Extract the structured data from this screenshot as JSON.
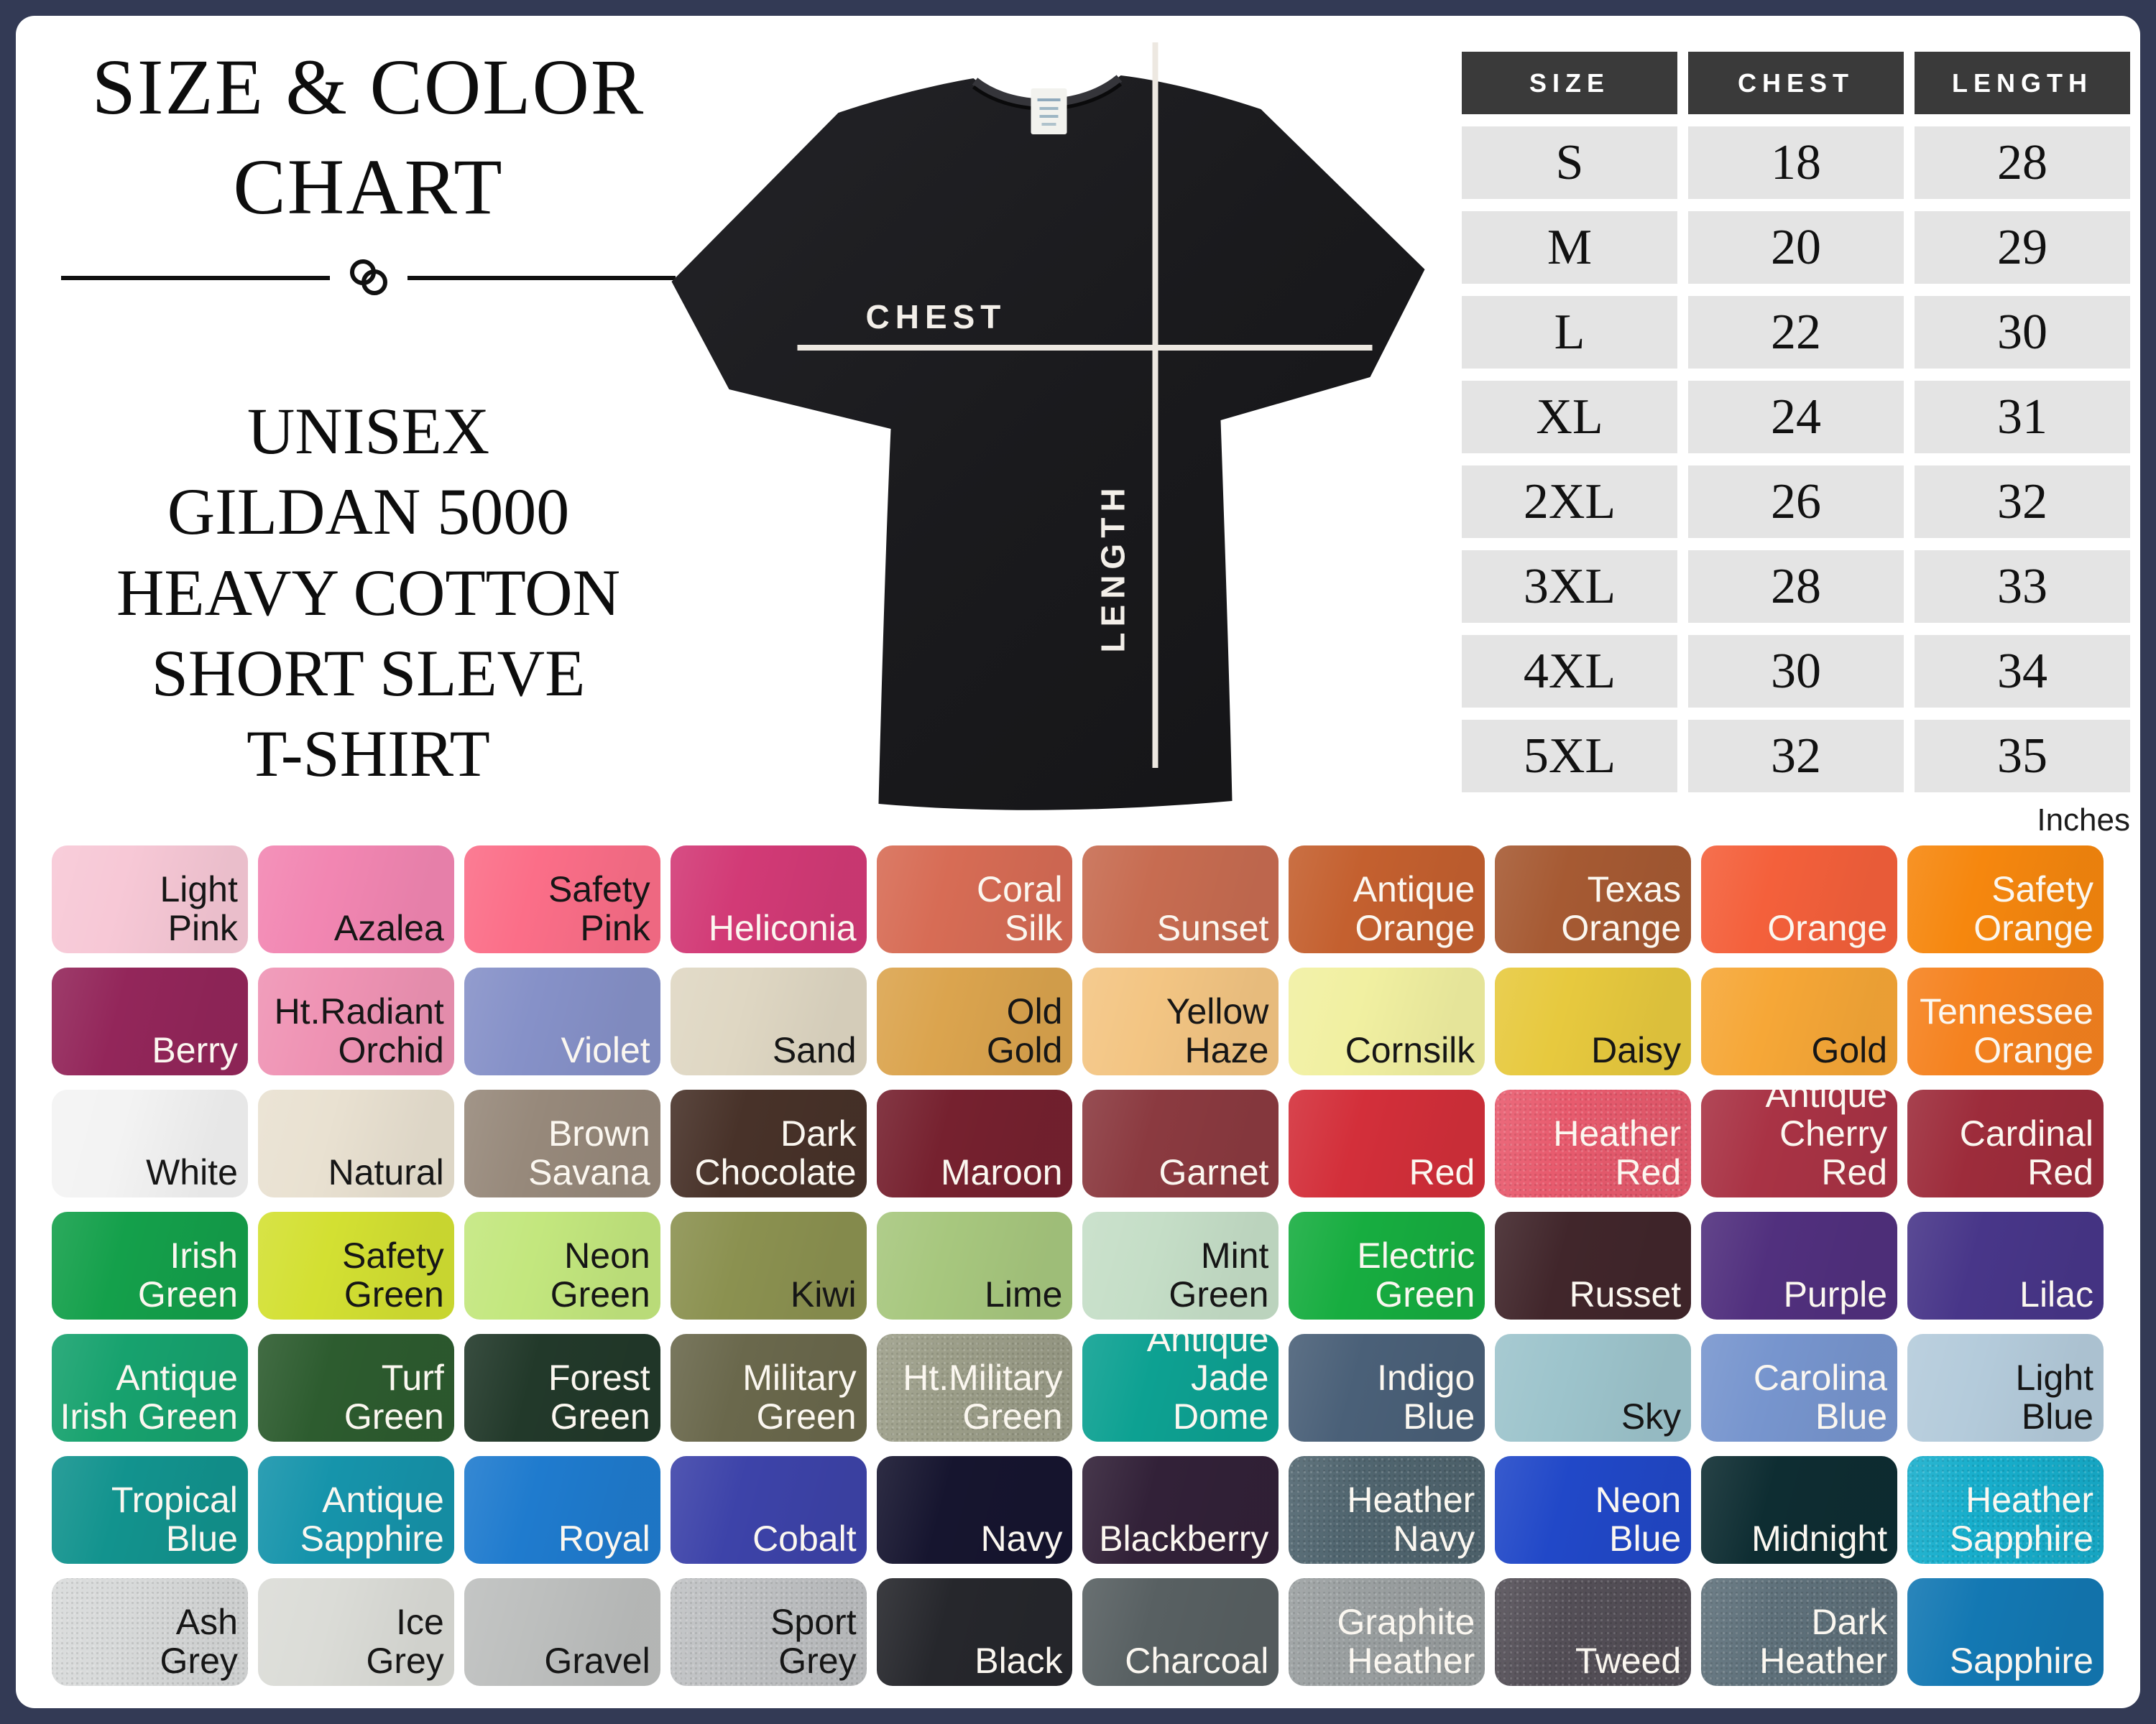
{
  "page": {
    "background": "#FFFFFF",
    "frame_color": "#333A55"
  },
  "title": {
    "lines": [
      "SIZE & COLOR",
      "CHART"
    ],
    "subtitle_lines": [
      "UNISEX",
      "GILDAN 5000",
      "HEAVY COTTON",
      "SHORT SLEVE",
      "T-SHIRT"
    ]
  },
  "shirt": {
    "chest_label": "CHEST",
    "length_label": "LENGTH",
    "shirt_color": "#1B1B1E",
    "line_color": "#EDE8E1"
  },
  "size_table": {
    "headers": [
      "SIZE",
      "CHEST",
      "LENGTH"
    ],
    "rows": [
      [
        "S",
        "18",
        "28"
      ],
      [
        "M",
        "20",
        "29"
      ],
      [
        "L",
        "22",
        "30"
      ],
      [
        "XL",
        "24",
        "31"
      ],
      [
        "2XL",
        "26",
        "32"
      ],
      [
        "3XL",
        "28",
        "33"
      ],
      [
        "4XL",
        "30",
        "34"
      ],
      [
        "5XL",
        "32",
        "35"
      ]
    ],
    "unit_note": "Inches",
    "header_bg": "#3A3A3A",
    "cell_bg": "#E4E4E4"
  },
  "swatch_rows": [
    [
      {
        "name": "Light Pink",
        "lines": [
          "Light",
          "Pink"
        ],
        "color": "#F7C8D6",
        "text": "dark"
      },
      {
        "name": "Azalea",
        "lines": [
          "Azalea"
        ],
        "color": "#F286B2",
        "text": "dark"
      },
      {
        "name": "Safety Pink",
        "lines": [
          "Safety",
          "Pink"
        ],
        "color": "#FB6E88",
        "text": "dark"
      },
      {
        "name": "Heliconia",
        "lines": [
          "Heliconia"
        ],
        "color": "#D23A76",
        "text": "light"
      },
      {
        "name": "Coral Silk",
        "lines": [
          "Coral",
          "Silk"
        ],
        "color": "#D76C55",
        "text": "light"
      },
      {
        "name": "Sunset",
        "lines": [
          "Sunset"
        ],
        "color": "#C76C51",
        "text": "light"
      },
      {
        "name": "Antique Orange",
        "lines": [
          "Antique",
          "Orange"
        ],
        "color": "#C4602F",
        "text": "light"
      },
      {
        "name": "Texas Orange",
        "lines": [
          "Texas",
          "Orange"
        ],
        "color": "#A65A33",
        "text": "light"
      },
      {
        "name": "Orange",
        "lines": [
          "Orange"
        ],
        "color": "#F4603B",
        "text": "light"
      },
      {
        "name": "Safety Orange",
        "lines": [
          "Safety",
          "Orange"
        ],
        "color": "#F6870E",
        "text": "light"
      }
    ],
    [
      {
        "name": "Berry",
        "lines": [
          "Berry"
        ],
        "color": "#93265A",
        "text": "light"
      },
      {
        "name": "Ht.Radiant Orchid",
        "lines": [
          "Ht.Radiant",
          "Orchid"
        ],
        "color": "#EF93B4",
        "text": "dark"
      },
      {
        "name": "Violet",
        "lines": [
          "Violet"
        ],
        "color": "#8691C8",
        "text": "light"
      },
      {
        "name": "Sand",
        "lines": [
          "Sand"
        ],
        "color": "#DFD7C3",
        "text": "dark"
      },
      {
        "name": "Old Gold",
        "lines": [
          "Old",
          "Gold"
        ],
        "color": "#DBA44E",
        "text": "dark"
      },
      {
        "name": "Yellow Haze",
        "lines": [
          "Yellow",
          "Haze"
        ],
        "color": "#F3C583",
        "text": "dark"
      },
      {
        "name": "Cornsilk",
        "lines": [
          "Cornsilk"
        ],
        "color": "#F1F0A1",
        "text": "dark"
      },
      {
        "name": "Daisy",
        "lines": [
          "Daisy"
        ],
        "color": "#E7C93E",
        "text": "dark"
      },
      {
        "name": "Gold",
        "lines": [
          "Gold"
        ],
        "color": "#F6A737",
        "text": "dark"
      },
      {
        "name": "Tennessee Orange",
        "lines": [
          "Tennessee",
          "Orange"
        ],
        "color": "#F5821F",
        "text": "light"
      }
    ],
    [
      {
        "name": "White",
        "lines": [
          "White"
        ],
        "color": "#F3F3F3",
        "text": "dark"
      },
      {
        "name": "Natural",
        "lines": [
          "Natural"
        ],
        "color": "#E9E1D1",
        "text": "dark"
      },
      {
        "name": "Brown Savana",
        "lines": [
          "Brown",
          "Savana"
        ],
        "color": "#97897B",
        "text": "light"
      },
      {
        "name": "Dark Chocolate",
        "lines": [
          "Dark",
          "Chocolate"
        ],
        "color": "#483229",
        "text": "light"
      },
      {
        "name": "Maroon",
        "lines": [
          "Maroon"
        ],
        "color": "#76212F",
        "text": "light"
      },
      {
        "name": "Garnet",
        "lines": [
          "Garnet"
        ],
        "color": "#8B3A40",
        "text": "light"
      },
      {
        "name": "Red",
        "lines": [
          "Red"
        ],
        "color": "#D32F3A",
        "text": "light"
      },
      {
        "name": "Heather Red",
        "lines": [
          "Heather",
          "Red"
        ],
        "color": "#E85B6E",
        "text": "light",
        "heather": true
      },
      {
        "name": "Antique Cherry Red",
        "lines": [
          "Antique",
          "Cherry Red"
        ],
        "color": "#A93345",
        "text": "light"
      },
      {
        "name": "Cardinal Red",
        "lines": [
          "Cardinal",
          "Red"
        ],
        "color": "#9D2C3B",
        "text": "light"
      }
    ],
    [
      {
        "name": "Irish Green",
        "lines": [
          "Irish",
          "Green"
        ],
        "color": "#14A04B",
        "text": "light"
      },
      {
        "name": "Safety Green",
        "lines": [
          "Safety",
          "Green"
        ],
        "color": "#D3E032",
        "text": "dark"
      },
      {
        "name": "Neon Green",
        "lines": [
          "Neon",
          "Green"
        ],
        "color": "#C3E77E",
        "text": "dark"
      },
      {
        "name": "Kiwi",
        "lines": [
          "Kiwi"
        ],
        "color": "#8B9150",
        "text": "dark"
      },
      {
        "name": "Lime",
        "lines": [
          "Lime"
        ],
        "color": "#A7C77E",
        "text": "dark"
      },
      {
        "name": "Mint Green",
        "lines": [
          "Mint",
          "Green"
        ],
        "color": "#C5DEC7",
        "text": "dark"
      },
      {
        "name": "Electric Green",
        "lines": [
          "Electric",
          "Green"
        ],
        "color": "#17AD40",
        "text": "light"
      },
      {
        "name": "Russet",
        "lines": [
          "Russet"
        ],
        "color": "#41262B",
        "text": "light"
      },
      {
        "name": "Purple",
        "lines": [
          "Purple"
        ],
        "color": "#51307E",
        "text": "light"
      },
      {
        "name": "Lilac",
        "lines": [
          "Lilac"
        ],
        "color": "#483689",
        "text": "light"
      }
    ],
    [
      {
        "name": "Antique Irish Green",
        "lines": [
          "Antique",
          "Irish Green"
        ],
        "color": "#17A26E",
        "text": "light"
      },
      {
        "name": "Turf Green",
        "lines": [
          "Turf",
          "Green"
        ],
        "color": "#2D5C2F",
        "text": "light"
      },
      {
        "name": "Forest Green",
        "lines": [
          "Forest",
          "Green"
        ],
        "color": "#22392A",
        "text": "light"
      },
      {
        "name": "Military Green",
        "lines": [
          "Military",
          "Green"
        ],
        "color": "#6A684C",
        "text": "light"
      },
      {
        "name": "Ht.Military Green",
        "lines": [
          "Ht.Military",
          "Green"
        ],
        "color": "#9C9E89",
        "text": "light",
        "heather": true
      },
      {
        "name": "Antique Jade Dome",
        "lines": [
          "Antique",
          "Jade Dome"
        ],
        "color": "#0DA192",
        "text": "light"
      },
      {
        "name": "Indigo Blue",
        "lines": [
          "Indigo",
          "Blue"
        ],
        "color": "#4A6078",
        "text": "light"
      },
      {
        "name": "Sky",
        "lines": [
          "Sky"
        ],
        "color": "#9DC4CC",
        "text": "dark"
      },
      {
        "name": "Carolina Blue",
        "lines": [
          "Carolina",
          "Blue"
        ],
        "color": "#7795CE",
        "text": "light"
      },
      {
        "name": "Light Blue",
        "lines": [
          "Light",
          "Blue"
        ],
        "color": "#B4CBDB",
        "text": "dark"
      }
    ],
    [
      {
        "name": "Tropical Blue",
        "lines": [
          "Tropical",
          "Blue"
        ],
        "color": "#12938E",
        "text": "light"
      },
      {
        "name": "Antique Sapphire",
        "lines": [
          "Antique",
          "Sapphire"
        ],
        "color": "#1694AB",
        "text": "light"
      },
      {
        "name": "Royal",
        "lines": [
          "Royal"
        ],
        "color": "#1F7BCE",
        "text": "light"
      },
      {
        "name": "Cobalt",
        "lines": [
          "Cobalt"
        ],
        "color": "#3D43A9",
        "text": "light"
      },
      {
        "name": "Navy",
        "lines": [
          "Navy"
        ],
        "color": "#16152F",
        "text": "light"
      },
      {
        "name": "Blackberry",
        "lines": [
          "Blackberry"
        ],
        "color": "#322138",
        "text": "light"
      },
      {
        "name": "Heather Navy",
        "lines": [
          "Heather",
          "Navy"
        ],
        "color": "#50656F",
        "text": "light",
        "heather": true
      },
      {
        "name": "Neon Blue",
        "lines": [
          "Neon",
          "Blue"
        ],
        "color": "#2148C8",
        "text": "light"
      },
      {
        "name": "Midnight",
        "lines": [
          "Midnight"
        ],
        "color": "#0E2D32",
        "text": "light"
      },
      {
        "name": "Heather Sapphire",
        "lines": [
          "Heather",
          "Sapphire"
        ],
        "color": "#17AECC",
        "text": "light",
        "heather": true
      }
    ],
    [
      {
        "name": "Ash Grey",
        "lines": [
          "Ash",
          "Grey"
        ],
        "color": "#D8DADA",
        "text": "dark",
        "heather": true
      },
      {
        "name": "Ice Grey",
        "lines": [
          "Ice",
          "Grey"
        ],
        "color": "#DBDCD7",
        "text": "dark"
      },
      {
        "name": "Gravel",
        "lines": [
          "Gravel"
        ],
        "color": "#BDBFBE",
        "text": "dark"
      },
      {
        "name": "Sport Grey",
        "lines": [
          "Sport",
          "Grey"
        ],
        "color": "#BFC1C3",
        "text": "dark",
        "heather": true
      },
      {
        "name": "Black",
        "lines": [
          "Black"
        ],
        "color": "#26272C",
        "text": "light"
      },
      {
        "name": "Charcoal",
        "lines": [
          "Charcoal"
        ],
        "color": "#586062",
        "text": "light"
      },
      {
        "name": "Graphite Heather",
        "lines": [
          "Graphite",
          "Heather"
        ],
        "color": "#9A9FA0",
        "text": "light",
        "heather": true
      },
      {
        "name": "Tweed",
        "lines": [
          "Tweed"
        ],
        "color": "#544F57",
        "text": "light",
        "heather": true
      },
      {
        "name": "Dark Heather",
        "lines": [
          "Dark",
          "Heather"
        ],
        "color": "#5F717B",
        "text": "light",
        "heather": true
      },
      {
        "name": "Sapphire",
        "lines": [
          "Sapphire"
        ],
        "color": "#1378B3",
        "text": "light"
      }
    ]
  ]
}
